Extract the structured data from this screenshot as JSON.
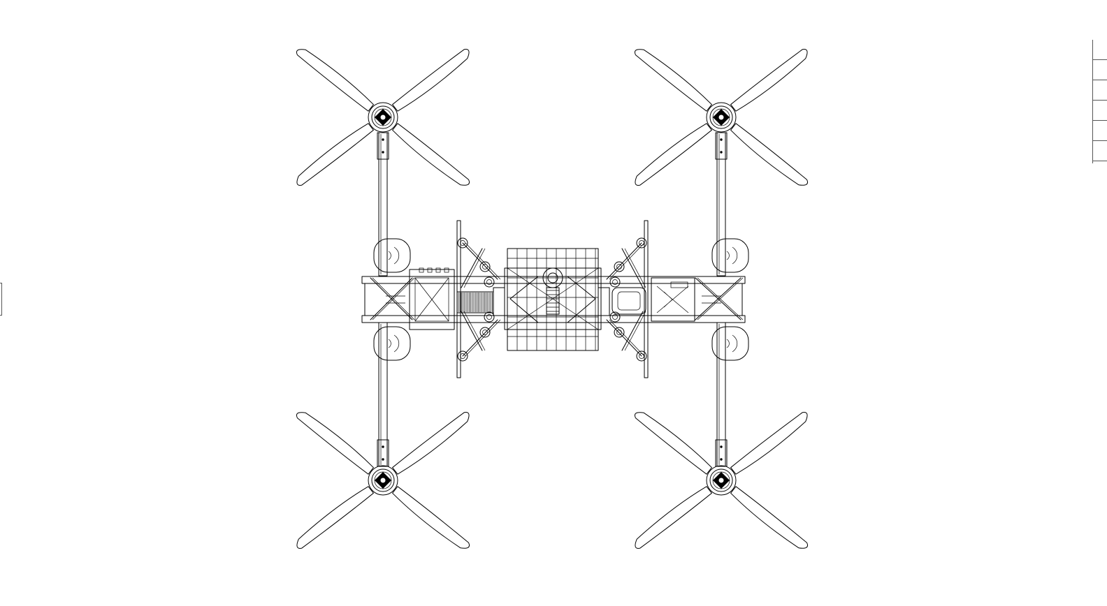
{
  "drawing": {
    "subject": "quad-rotor-frame-top-view",
    "line_color": "#000000",
    "background_color": "#ffffff",
    "rotor_count": 4,
    "blades_per_rotor": 2
  },
  "panels": {
    "right_edge_rows": 6
  }
}
